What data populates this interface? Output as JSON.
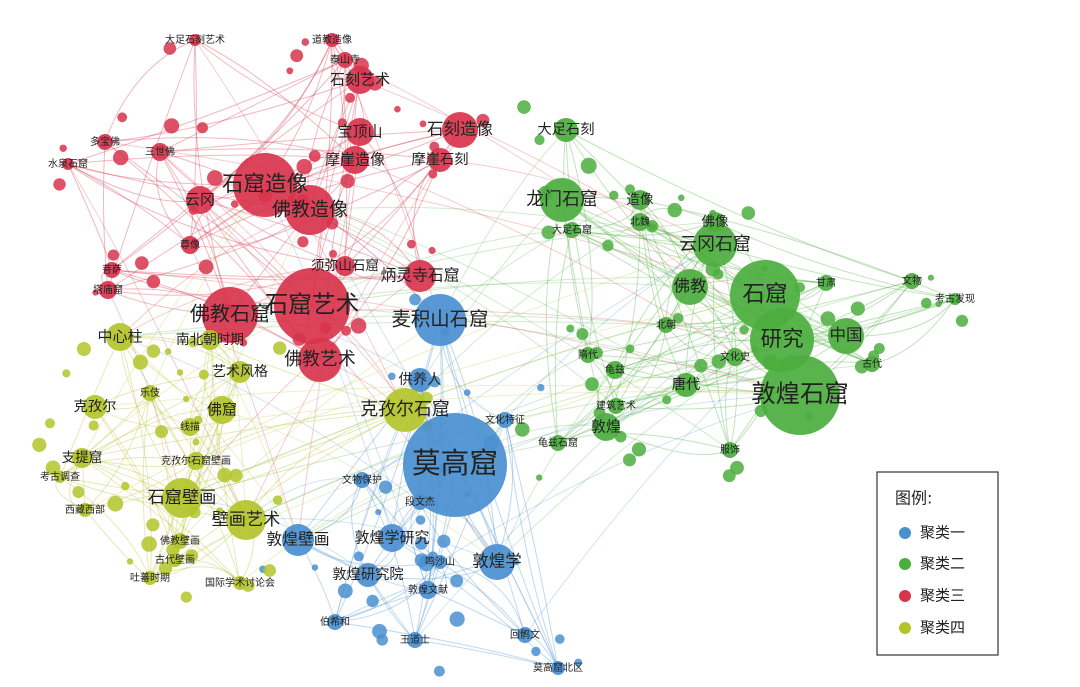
{
  "legend": {
    "title": "图例:"
  },
  "clusters": [
    {
      "name": "聚类一",
      "color": "#4a8fd0",
      "nodes": [
        "莫高窟",
        "麦积山石窟",
        "敦煌学",
        "敦煌壁画",
        "敦煌学研究",
        "敦煌研究院",
        "回鹘文",
        "莫高窟北区",
        "伯希和",
        "王道士",
        "供养人",
        "段文杰",
        "鸣沙山",
        "敦煌文献",
        "文物保护",
        "文化特征"
      ]
    },
    {
      "name": "聚类二",
      "color": "#4cae3e",
      "nodes": [
        "敦煌石窟",
        "石窟",
        "研究",
        "云冈石窟",
        "龙门石窟",
        "大足石刻",
        "佛教",
        "中国",
        "敦煌",
        "唐代",
        "文物",
        "考古发现",
        "甘肃",
        "古代",
        "龟兹",
        "建筑艺术",
        "北魏",
        "造像",
        "佛像",
        "北朝",
        "隋代",
        "服饰",
        "文化史",
        "龟兹石窟",
        "大足石窟"
      ]
    },
    {
      "name": "聚类三",
      "color": "#d8344c",
      "nodes": [
        "石窟艺术",
        "石窟造像",
        "佛教石窟",
        "佛教造像",
        "佛教艺术",
        "石刻艺术",
        "石刻造像",
        "宝顶山",
        "摩崖造像",
        "炳灵寺石窟",
        "云冈",
        "摩崖石刻",
        "大足石刻艺术",
        "道教造像",
        "泰山寺",
        "须弥山石窟",
        "三世佛",
        "多宝佛",
        "水泉石窟",
        "尊像",
        "菩萨",
        "塔庙窟"
      ]
    },
    {
      "name": "聚类四",
      "color": "#b3c42a",
      "nodes": [
        "克孜尔石窟",
        "石窟壁画",
        "壁画艺术",
        "中心柱",
        "克孜尔",
        "支提窟",
        "佛窟",
        "西藏西部",
        "考古调查",
        "佛教壁画",
        "古代壁画",
        "吐蕃时期",
        "国际学术讨论会",
        "克孜尔石窟壁画",
        "艺术风格",
        "南北朝时期",
        "线描",
        "乐伎"
      ]
    }
  ]
}
